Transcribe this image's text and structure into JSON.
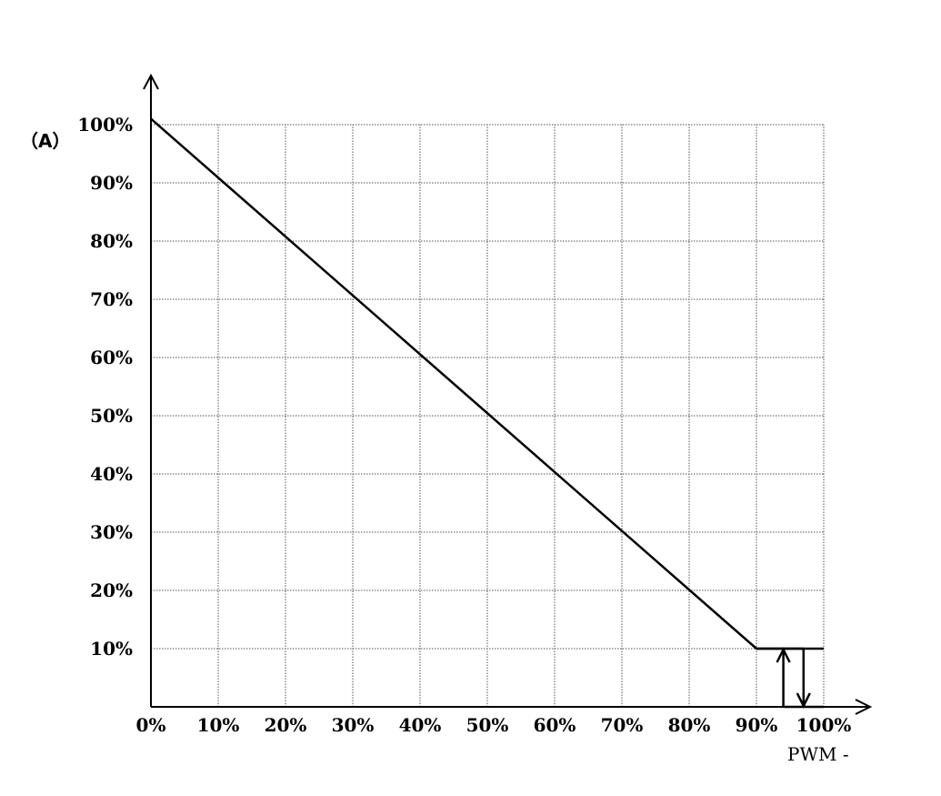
{
  "chart_data": {
    "type": "line",
    "ylabel": "（A）",
    "xlabel": "PWM -",
    "xlim": [
      0,
      100
    ],
    "ylim": [
      0,
      100
    ],
    "grid": true,
    "x_ticks": [
      "0%",
      "10%",
      "20%",
      "30%",
      "40%",
      "50%",
      "60%",
      "70%",
      "80%",
      "90%",
      "100%"
    ],
    "y_ticks": [
      "10%",
      "20%",
      "30%",
      "40%",
      "50%",
      "60%",
      "70%",
      "80%",
      "90%",
      "100%"
    ],
    "series": [
      {
        "x": [
          0,
          90,
          100
        ],
        "y": [
          101,
          10,
          10
        ]
      }
    ],
    "hysteresis": {
      "up_arrow_x": 94,
      "down_arrow_x": 97,
      "low_y": 0,
      "high_y": 10
    },
    "colors": {
      "line": "#000000",
      "grid": "#555555",
      "background": "#ffffff"
    }
  }
}
